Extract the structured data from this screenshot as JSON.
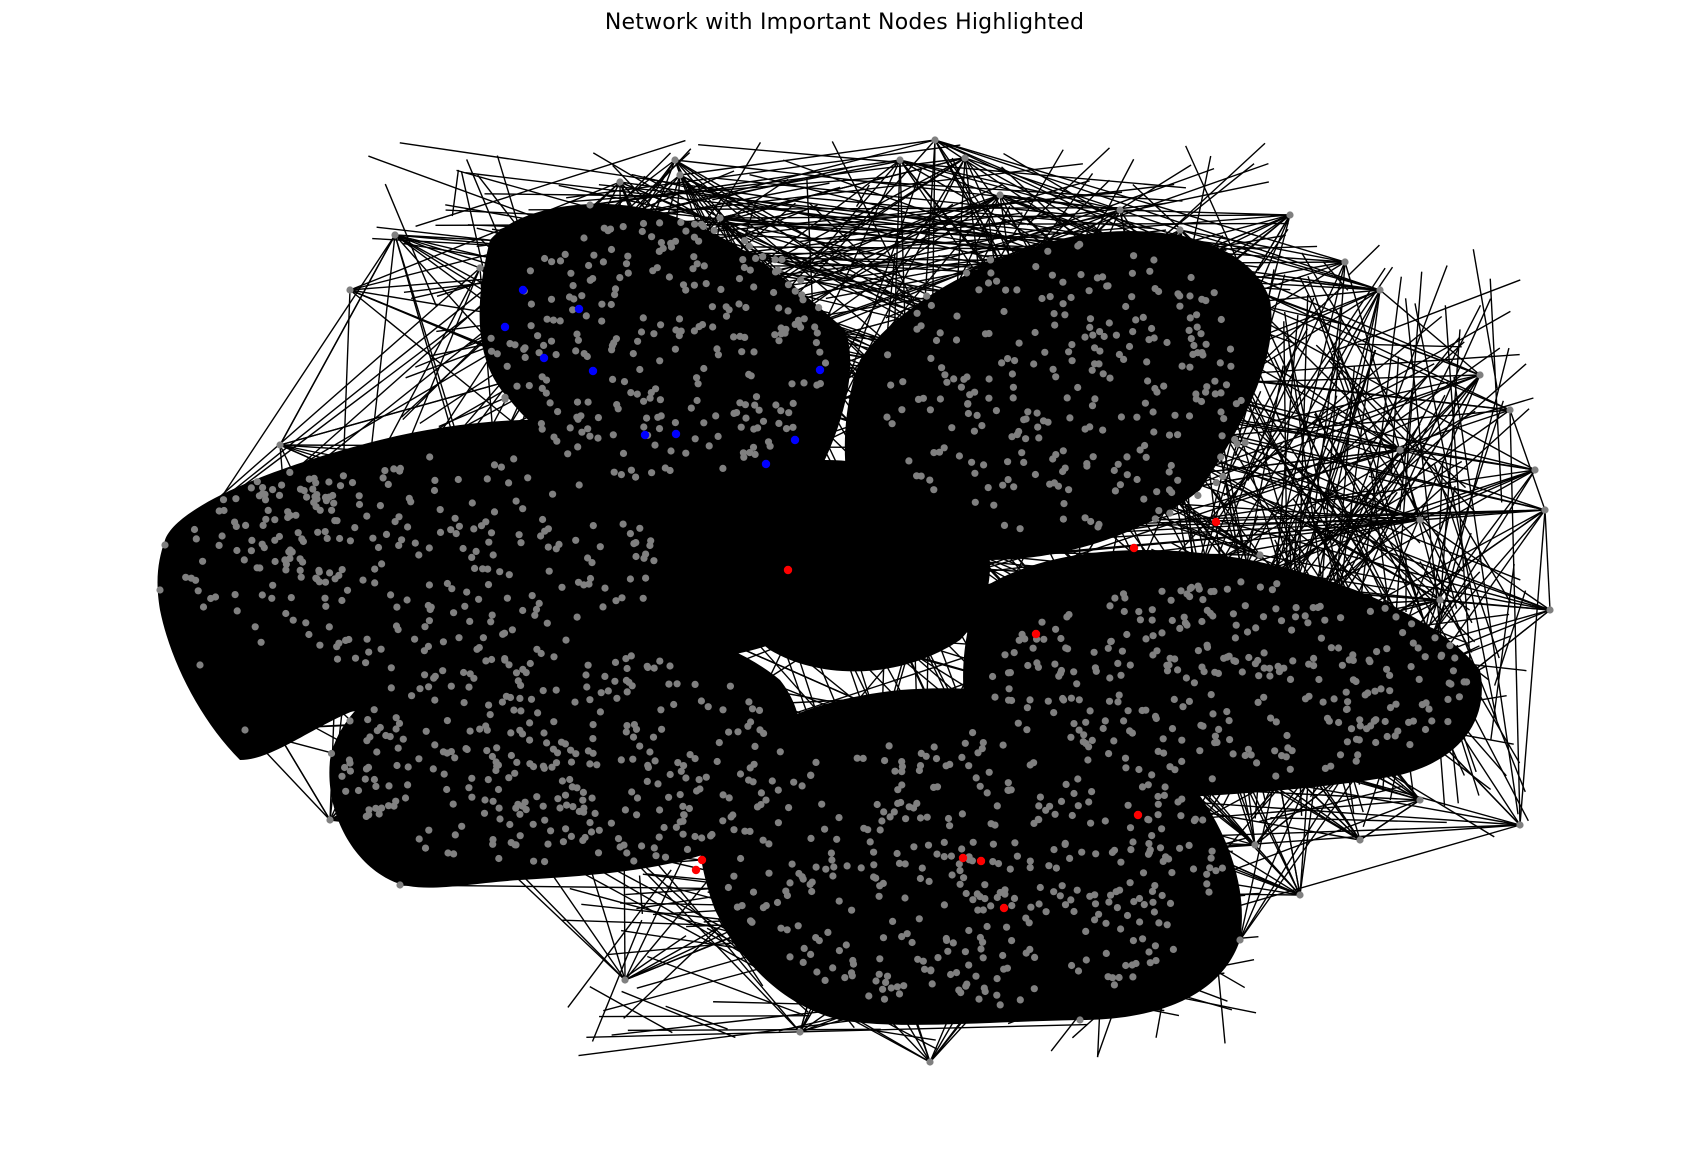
{
  "figure": {
    "title": "Network with Important Nodes Highlighted"
  },
  "colors": {
    "edge": "#000000",
    "default_node": "#808080",
    "highlight_a": "#ff0000",
    "highlight_b": "#0000ff",
    "background": "#ffffff"
  },
  "diagram": {
    "type": "network-graph",
    "highlighted_groups": [
      {
        "color": "#0000ff",
        "count": 10
      },
      {
        "color": "#ff0000",
        "count": 10
      }
    ]
  }
}
